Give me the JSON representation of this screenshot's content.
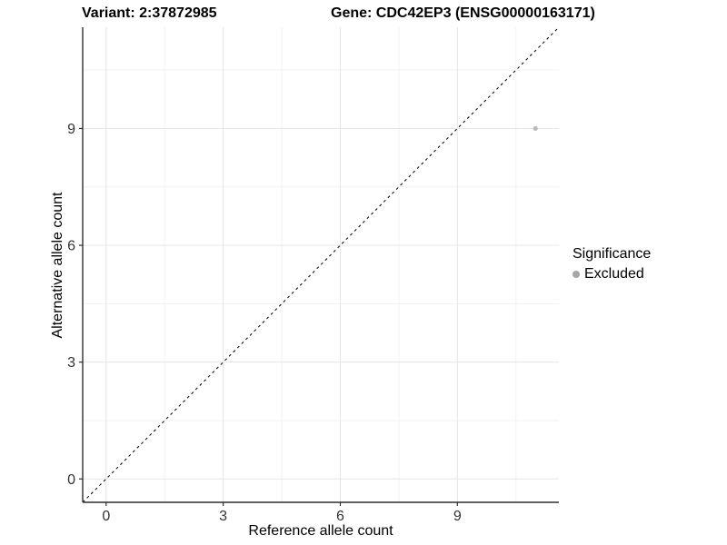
{
  "header": {
    "variant_title": "Variant: 2:37872985",
    "gene_title": "Gene: CDC42EP3 (ENSG00000163171)"
  },
  "legend": {
    "title": "Significance",
    "items": [
      {
        "label": "Excluded",
        "color": "#a6a6a6",
        "marker": "circle"
      }
    ]
  },
  "chart_data": {
    "type": "scatter",
    "title": "",
    "xlabel": "Reference allele count",
    "ylabel": "Alternative allele count",
    "xlim": [
      -0.6,
      11.6
    ],
    "ylim": [
      -0.6,
      11.6
    ],
    "x_ticks": [
      0,
      3,
      6,
      9
    ],
    "y_ticks": [
      0,
      3,
      6,
      9
    ],
    "x_minor_ticks": [
      1.5,
      4.5,
      7.5,
      10.5
    ],
    "y_minor_ticks": [
      1.5,
      4.5,
      7.5,
      10.5
    ],
    "grid": true,
    "legend_position": "right",
    "series": [
      {
        "name": "Excluded",
        "color": "#b9b9b9",
        "points": [
          {
            "x": 11,
            "y": 9
          }
        ]
      }
    ],
    "reference_line": {
      "type": "identity",
      "from": -0.6,
      "to": 11.6,
      "style": "dashed",
      "color": "#111111"
    },
    "colors": {
      "grid_major": "#e6e6e6",
      "grid_minor": "#f2f2f2",
      "axis_line": "#2f2f2f",
      "tick_label": "#333333",
      "background": "#ffffff"
    }
  }
}
